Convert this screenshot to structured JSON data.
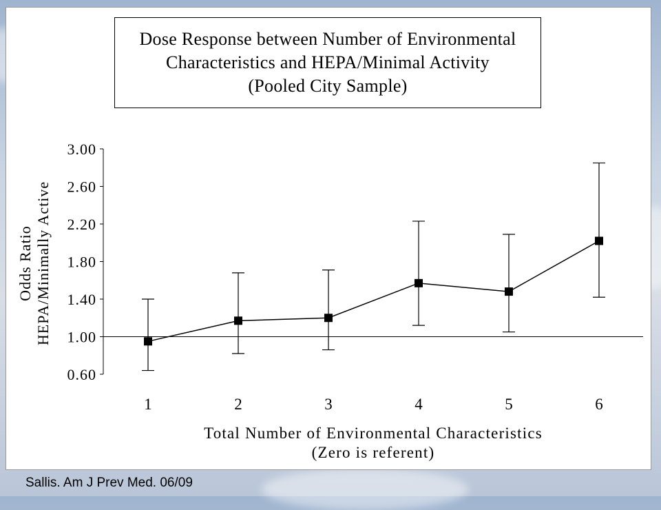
{
  "source_note": "Sallis. Am J Prev Med. 06/09",
  "chart_data": {
    "type": "line",
    "title_lines": [
      "Dose Response between Number of Environmental",
      "Characteristics and HEPA/Minimal Activity",
      "(Pooled City Sample)"
    ],
    "xlabel_lines": [
      "Total Number of Environmental Characteristics",
      "(Zero is referent)"
    ],
    "ylabel_lines": [
      "Odds Ratio",
      "HEPA/Minimally Active"
    ],
    "categories": [
      "1",
      "2",
      "3",
      "4",
      "5",
      "6"
    ],
    "yticks": [
      "0.60",
      "1.00",
      "1.40",
      "1.80",
      "2.20",
      "2.60",
      "3.00"
    ],
    "ylim": [
      0.6,
      3.0
    ],
    "reference_line": 1.0,
    "series": [
      {
        "values": [
          0.95,
          1.17,
          1.2,
          1.57,
          1.48,
          2.02
        ],
        "lower": [
          0.64,
          0.82,
          0.86,
          1.12,
          1.05,
          1.42
        ],
        "upper": [
          1.4,
          1.68,
          1.71,
          2.23,
          2.09,
          2.85
        ]
      }
    ],
    "grid": false,
    "legend": "none",
    "colors": {
      "line": "#000000",
      "marker": "#000000",
      "background": "#ffffff"
    }
  }
}
